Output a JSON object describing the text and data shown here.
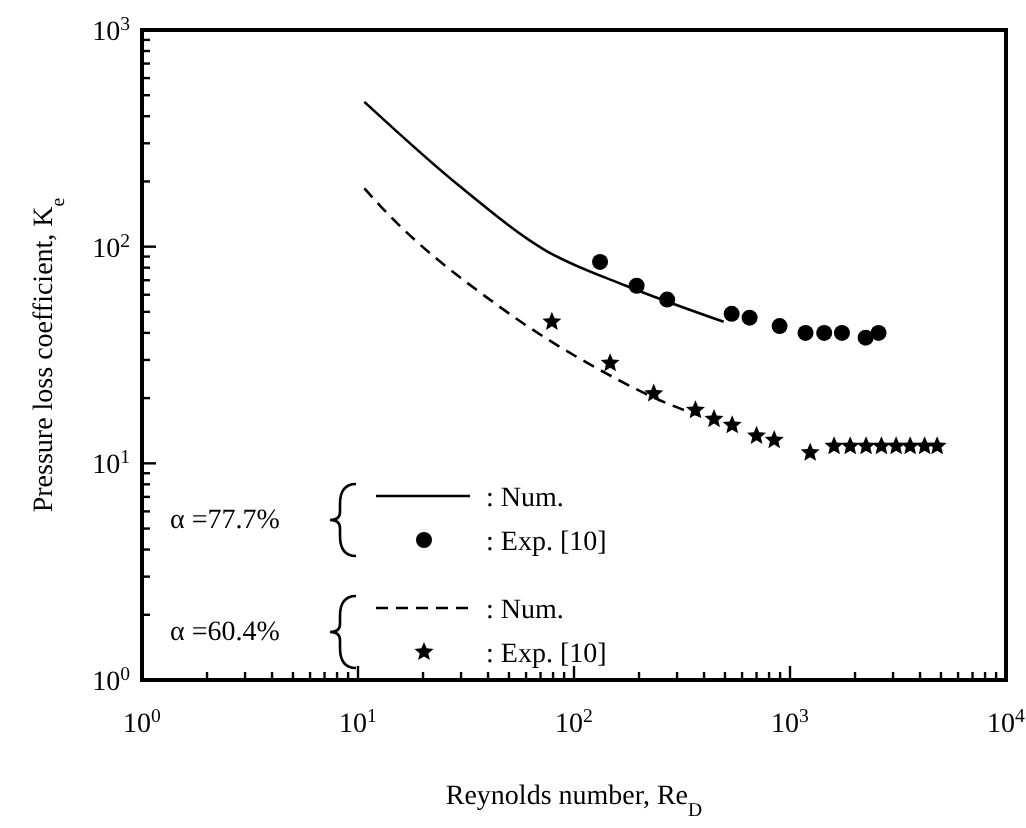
{
  "chart_data": {
    "type": "line",
    "xlabel": "Reynolds number, Re$_{D}$",
    "ylabel": "Pressure loss coefficient, K$_{e}$",
    "log": "xy",
    "grid": false,
    "legend": "bottom left",
    "xlim": [
      1,
      10000
    ],
    "ylim": [
      1,
      1000
    ],
    "xticks": [
      {
        "value": 1,
        "label": "10$^{0}$"
      },
      {
        "value": 10,
        "label": "10$^{1}$"
      },
      {
        "value": 100,
        "label": "10$^{2}$"
      },
      {
        "value": 1000,
        "label": "10$^{3}$"
      },
      {
        "value": 10000,
        "label": "10$^{4}$"
      }
    ],
    "yticks": [
      {
        "value": 1,
        "label": "10$^{0}$"
      },
      {
        "value": 10,
        "label": "10$^{1}$"
      },
      {
        "value": 100,
        "label": "10$^{2}$"
      },
      {
        "value": 1000,
        "label": "10$^{3}$"
      }
    ],
    "annotations": [
      "α =77.7%",
      "α =60.4%"
    ],
    "series": [
      {
        "name": ": Num.",
        "color": "#000000",
        "line_style": "solid",
        "marker": "none",
        "x": [
          10.7,
          29.6,
          74,
          174,
          493
        ],
        "values": [
          466,
          190,
          96,
          66,
          45
        ]
      },
      {
        "name": ": Exp. [10]",
        "type": "scatter",
        "color": "#000000",
        "marker": "circle",
        "x": [
          132,
          195,
          270,
          537,
          650,
          895,
          1180,
          1440,
          1740,
          2240,
          2570
        ],
        "values": [
          85,
          66,
          57,
          49,
          47,
          43,
          40,
          40,
          40,
          38,
          40
        ]
      },
      {
        "name": ": Num.",
        "color": "#000000",
        "line_style": "dashed",
        "marker": "none",
        "x": [
          10.7,
          12.7,
          45,
          141,
          251,
          380
        ],
        "values": [
          186,
          154,
          53,
          26,
          19.5,
          16.6
        ]
      },
      {
        "name": ": Exp. [10]",
        "type": "scatter",
        "color": "#000000",
        "marker": "star",
        "x": [
          79,
          147,
          234,
          365,
          445,
          540,
          700,
          845,
          1240,
          1600,
          1900,
          2250,
          2650,
          3100,
          3600,
          4200,
          4800
        ],
        "values": [
          45,
          29,
          21,
          17.6,
          16,
          15,
          13.4,
          12.8,
          11.2,
          12,
          12,
          12,
          12,
          12,
          12,
          12,
          12
        ]
      }
    ]
  }
}
